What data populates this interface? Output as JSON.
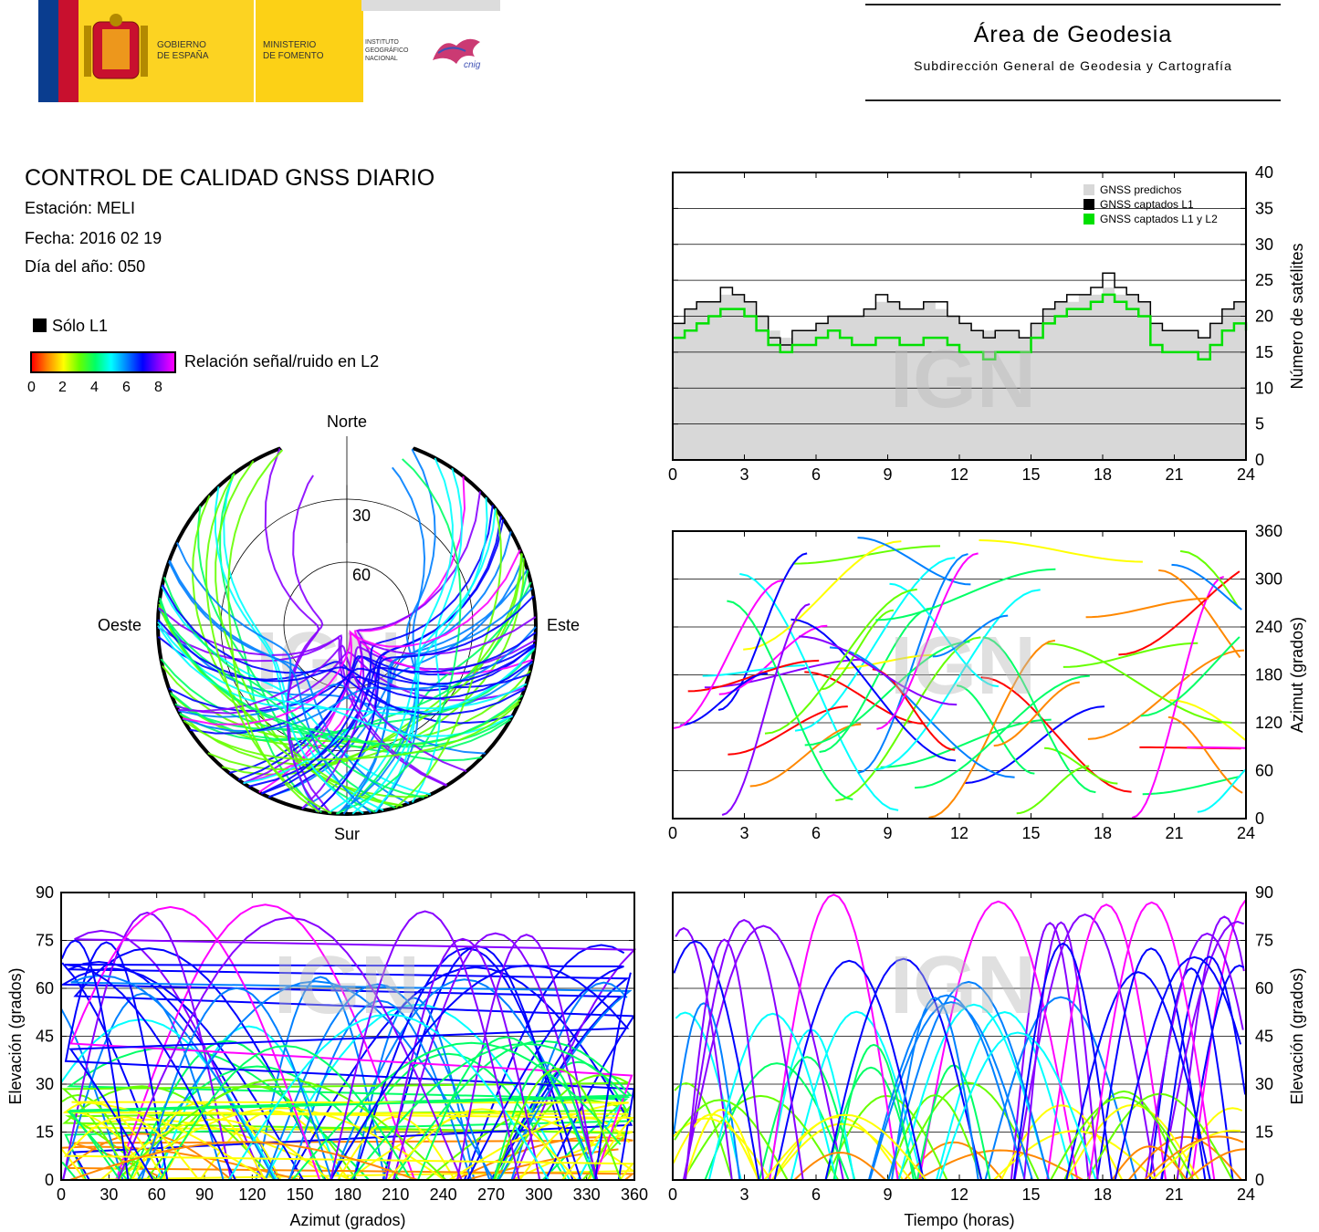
{
  "header": {
    "gobierno": [
      "GOBIERNO",
      "DE ESPAÑA"
    ],
    "ministerio": [
      "MINISTERIO",
      "DE FOMENTO"
    ],
    "instituto": [
      "INSTITUTO",
      "GEOGRÁFICO",
      "NACIONAL"
    ],
    "cnig": "cnig",
    "area_title": "Área de Geodesia",
    "area_subtitle": "Subdirección General de Geodesia y Cartografía"
  },
  "info": {
    "title": "CONTROL DE CALIDAD GNSS DIARIO",
    "station": "Estación: MELI",
    "date": "Fecha: 2016 02 19",
    "doy": "Día del año: 050"
  },
  "legend": {
    "solo_l1": "Sólo L1",
    "snr_label": "Relación señal/ruido en L2",
    "snr_ticks": [
      "0",
      "2",
      "4",
      "6",
      "8"
    ]
  },
  "watermark": "IGN",
  "colors": {
    "predicted": "#d8d8d8",
    "captured_l1": "#000000",
    "captured_l1_l2": "#00e000",
    "snr_scale": [
      "#ff0000",
      "#ff8800",
      "#ffff00",
      "#66ff00",
      "#00ff66",
      "#00ffff",
      "#0080ff",
      "#0000ff",
      "#8800ff",
      "#ff00ff"
    ]
  },
  "chart_data": [
    {
      "id": "satellites",
      "type": "area",
      "xlabel": "",
      "ylabel": "Número de satélites",
      "xlim": [
        0,
        24
      ],
      "ylim": [
        0,
        40
      ],
      "xticks": [
        "0",
        "3",
        "6",
        "9",
        "12",
        "15",
        "18",
        "21",
        "24"
      ],
      "yticks": [
        "0",
        "5",
        "10",
        "15",
        "20",
        "25",
        "30",
        "35",
        "40"
      ],
      "grid": true,
      "legend_position": "top-right",
      "legend": [
        "GNSS predichos",
        "GNSS captados L1",
        "GNSS captados L1 y L2"
      ],
      "x": [
        0,
        0.5,
        1,
        1.5,
        2,
        2.5,
        3,
        3.5,
        4,
        4.5,
        5,
        5.5,
        6,
        6.5,
        7,
        7.5,
        8,
        8.5,
        9,
        9.5,
        10,
        10.5,
        11,
        11.5,
        12,
        12.5,
        13,
        13.5,
        14,
        14.5,
        15,
        15.5,
        16,
        16.5,
        17,
        17.5,
        18,
        18.5,
        19,
        19.5,
        20,
        20.5,
        21,
        21.5,
        22,
        22.5,
        23,
        23.5,
        24
      ],
      "series": [
        {
          "name": "GNSS predichos",
          "values": [
            19,
            21,
            22,
            22,
            23,
            23,
            22,
            20,
            18,
            17,
            18,
            18,
            19,
            20,
            20,
            20,
            21,
            22,
            22,
            21,
            21,
            22,
            21,
            20,
            19,
            18,
            18,
            18,
            18,
            17,
            19,
            21,
            22,
            22,
            23,
            23,
            24,
            23,
            23,
            22,
            19,
            18,
            18,
            18,
            17,
            19,
            21,
            22,
            23
          ]
        },
        {
          "name": "GNSS captados L1",
          "values": [
            19,
            21,
            22,
            22,
            24,
            23,
            22,
            20,
            17,
            16,
            18,
            18,
            19,
            20,
            20,
            20,
            21,
            23,
            22,
            21,
            21,
            22,
            22,
            20,
            19,
            18,
            17,
            18,
            18,
            17,
            19,
            21,
            22,
            23,
            23,
            24,
            26,
            24,
            23,
            22,
            19,
            18,
            18,
            18,
            17,
            19,
            21,
            22,
            23
          ]
        },
        {
          "name": "GNSS captados L1 y L2",
          "values": [
            17,
            18,
            19,
            20,
            21,
            21,
            20,
            18,
            16,
            15,
            16,
            16,
            17,
            18,
            17,
            16,
            16,
            17,
            17,
            16,
            16,
            17,
            17,
            16,
            15,
            15,
            14,
            15,
            15,
            15,
            17,
            19,
            20,
            21,
            21,
            22,
            23,
            22,
            21,
            20,
            16,
            15,
            15,
            15,
            14,
            16,
            18,
            19,
            18
          ]
        }
      ]
    },
    {
      "id": "skyplot",
      "type": "scatter",
      "projection": "polar",
      "labels": {
        "north": "Norte",
        "south": "Sur",
        "west": "Oeste",
        "east": "Este"
      },
      "ring_labels": [
        "30",
        "60"
      ],
      "description_values": "satellite elevation/azimuth tracks colored by L2 SNR"
    },
    {
      "id": "azimuth_time",
      "type": "scatter",
      "xlabel": "",
      "ylabel": "Azimut (grados)",
      "xlim": [
        0,
        24
      ],
      "ylim": [
        0,
        360
      ],
      "xticks": [
        "0",
        "3",
        "6",
        "9",
        "12",
        "15",
        "18",
        "21",
        "24"
      ],
      "yticks": [
        "0",
        "60",
        "120",
        "180",
        "240",
        "300",
        "360"
      ],
      "grid": true
    },
    {
      "id": "elevation_azimuth",
      "type": "scatter",
      "xlabel": "Azimut (grados)",
      "ylabel": "Elevación (grados)",
      "xlim": [
        0,
        360
      ],
      "ylim": [
        0,
        90
      ],
      "xticks": [
        "0",
        "30",
        "60",
        "90",
        "120",
        "150",
        "180",
        "210",
        "240",
        "270",
        "300",
        "330",
        "360"
      ],
      "yticks": [
        "0",
        "15",
        "30",
        "45",
        "60",
        "75",
        "90"
      ],
      "grid": true
    },
    {
      "id": "elevation_time",
      "type": "line",
      "xlabel": "Tiempo (horas)",
      "ylabel": "Elevación (grados)",
      "xlim": [
        0,
        24
      ],
      "ylim": [
        0,
        90
      ],
      "xticks": [
        "0",
        "3",
        "6",
        "9",
        "12",
        "15",
        "18",
        "21",
        "24"
      ],
      "yticks": [
        "0",
        "15",
        "30",
        "45",
        "60",
        "75",
        "90"
      ],
      "grid": true
    }
  ]
}
